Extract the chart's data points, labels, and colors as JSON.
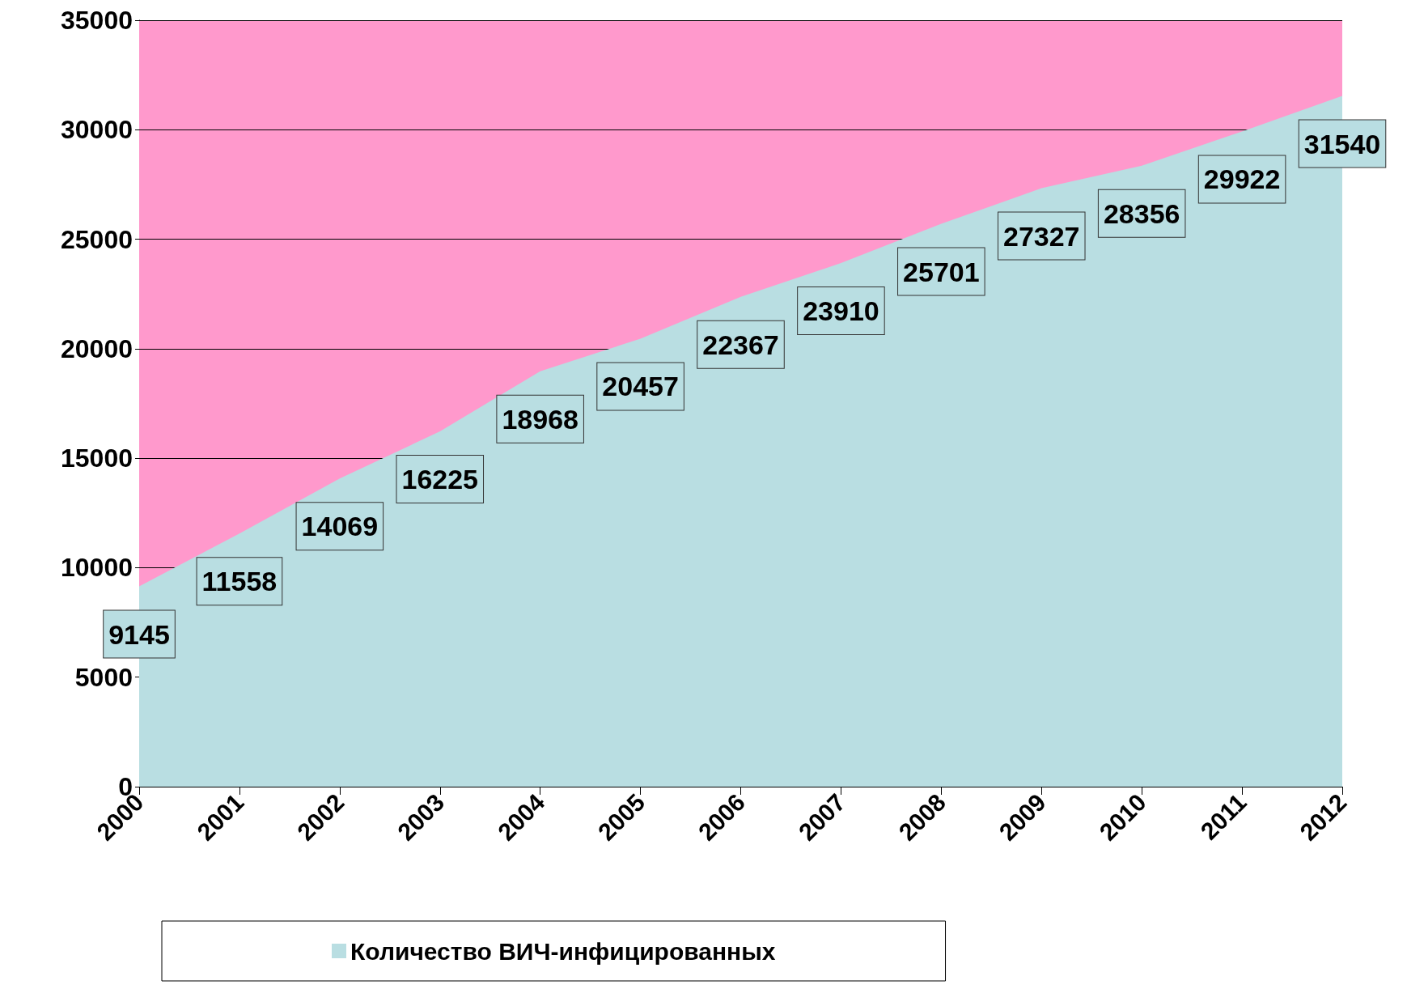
{
  "chart_data": {
    "type": "area",
    "categories": [
      "2000",
      "2001",
      "2002",
      "2003",
      "2004",
      "2005",
      "2006",
      "2007",
      "2008",
      "2009",
      "2010",
      "2011",
      "2012"
    ],
    "series": [
      {
        "name": "Количество ВИЧ-инфицированных",
        "color": "#b9dee2",
        "values": [
          9145,
          11558,
          14069,
          16225,
          18968,
          20457,
          22367,
          23910,
          25701,
          27327,
          28356,
          29922,
          31540
        ]
      }
    ],
    "ylim": [
      0,
      35000
    ],
    "yticks": [
      0,
      5000,
      10000,
      15000,
      20000,
      25000,
      30000,
      35000
    ],
    "bands": [
      {
        "axis": "y",
        "from": 0,
        "to": 35000,
        "color": "#ff99cc"
      }
    ],
    "grid": "y",
    "legend": "bottom",
    "data_labels": true
  }
}
